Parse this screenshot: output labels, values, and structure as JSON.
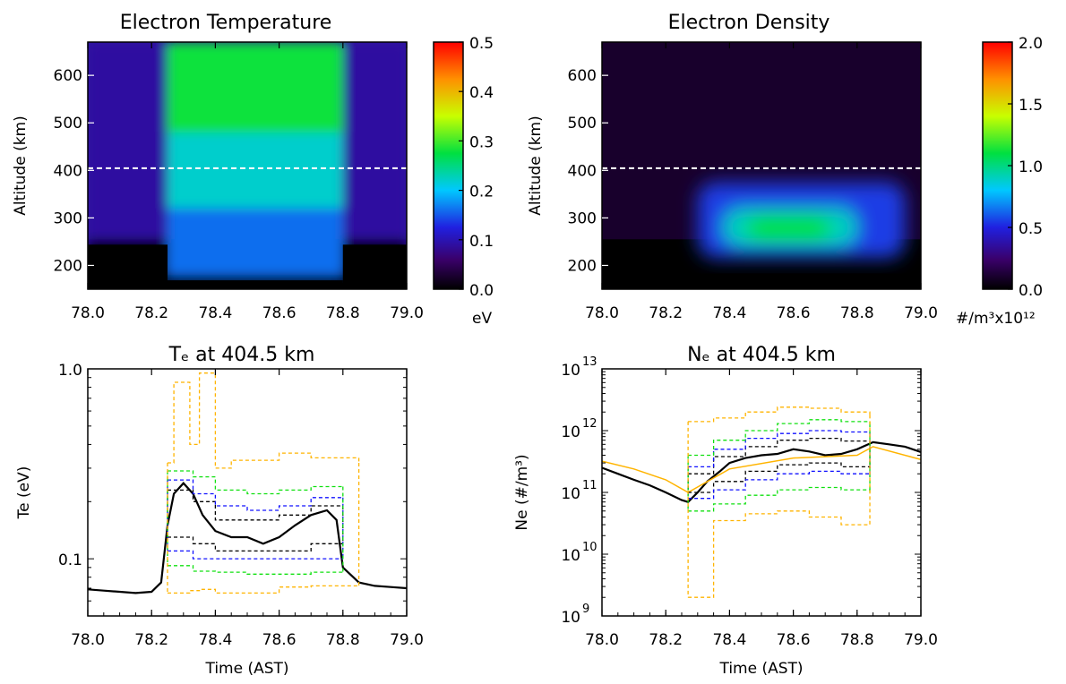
{
  "colors": {
    "background": "#ffffff",
    "axis": "#000000",
    "observed": "#000000",
    "band_black": "#000000",
    "band_blue": "#1010ff",
    "band_green": "#10e010",
    "band_orange": "#ffb400",
    "reference_line": "#ffffff"
  },
  "colormap": "rainbow (black → purple → blue → cyan → green → yellow → orange → red)",
  "chart_data": [
    {
      "type": "heatmap",
      "title": "Electron Temperature",
      "xlabel": "",
      "ylabel": "Altitude (km)",
      "xlim": [
        78.0,
        79.0
      ],
      "ylim": [
        150,
        670
      ],
      "x_ticks": [
        "78.0",
        "78.2",
        "78.4",
        "78.6",
        "78.8",
        "79.0"
      ],
      "y_ticks": [
        "200",
        "300",
        "400",
        "500",
        "600"
      ],
      "reference_line_altitude": 404.5,
      "colorbar": {
        "range": [
          0.0,
          0.5
        ],
        "ticks": [
          "0.0",
          "0.1",
          "0.2",
          "0.3",
          "0.4",
          "0.5"
        ],
        "unit": "eV"
      },
      "regions": [
        {
          "time": [
            78.0,
            78.25
          ],
          "altitude": [
            150,
            255
          ],
          "value": 0.0
        },
        {
          "time": [
            78.0,
            78.25
          ],
          "altitude": [
            255,
            670
          ],
          "value": 0.09
        },
        {
          "time": [
            78.25,
            78.8
          ],
          "altitude": [
            150,
            180
          ],
          "value": 0.0
        },
        {
          "time": [
            78.25,
            78.8
          ],
          "altitude": [
            180,
            320
          ],
          "value": 0.16
        },
        {
          "time": [
            78.25,
            78.8
          ],
          "altitude": [
            320,
            480
          ],
          "value": 0.22
        },
        {
          "time": [
            78.25,
            78.8
          ],
          "altitude": [
            480,
            670
          ],
          "value": 0.28
        },
        {
          "time": [
            78.8,
            79.0
          ],
          "altitude": [
            150,
            255
          ],
          "value": 0.0
        },
        {
          "time": [
            78.8,
            79.0
          ],
          "altitude": [
            255,
            670
          ],
          "value": 0.09
        }
      ]
    },
    {
      "type": "heatmap",
      "title": "Electron Density",
      "xlabel": "",
      "ylabel": "Altitude (km)",
      "xlim": [
        78.0,
        79.0
      ],
      "ylim": [
        150,
        670
      ],
      "x_ticks": [
        "78.0",
        "78.2",
        "78.4",
        "78.6",
        "78.8",
        "79.0"
      ],
      "y_ticks": [
        "200",
        "300",
        "400",
        "500",
        "600"
      ],
      "reference_line_altitude": 404.5,
      "colorbar": {
        "range": [
          0.0,
          2.0
        ],
        "ticks": [
          "0.0",
          "0.5",
          "1.0",
          "1.5",
          "2.0"
        ],
        "unit": "#/m³x10¹²"
      },
      "background_value": 0.1,
      "low_altitude_value": 0.0,
      "low_altitude_top": 255,
      "blob": [
        {
          "time": [
            78.3,
            78.95
          ],
          "altitude": [
            215,
            375
          ],
          "value": 0.55
        },
        {
          "time": [
            78.38,
            78.8
          ],
          "altitude": [
            240,
            320
          ],
          "value": 0.9
        },
        {
          "time": [
            78.45,
            78.72
          ],
          "altitude": [
            250,
            305
          ],
          "value": 1.1
        }
      ]
    },
    {
      "type": "line",
      "title": "Tₑ at 404.5 km",
      "xlabel": "Time (AST)",
      "ylabel": "Te (eV)",
      "xlim": [
        78.0,
        79.0
      ],
      "ylim": [
        0.05,
        1.0
      ],
      "yscale": "log",
      "x_ticks": [
        "78.0",
        "78.2",
        "78.4",
        "78.6",
        "78.8",
        "79.0"
      ],
      "y_ticks": [
        {
          "value": 0.1,
          "label": "0.1"
        },
        {
          "value": 1.0,
          "label": "1.0"
        }
      ],
      "series": [
        {
          "role": "observed",
          "color": "#000000",
          "style": "solid",
          "x": [
            78.0,
            78.05,
            78.1,
            78.15,
            78.2,
            78.23,
            78.25,
            78.27,
            78.3,
            78.33,
            78.36,
            78.4,
            78.45,
            78.5,
            78.55,
            78.6,
            78.65,
            78.7,
            78.75,
            78.78,
            78.8,
            78.85,
            78.9,
            78.95,
            79.0
          ],
          "y": [
            0.069,
            0.068,
            0.067,
            0.066,
            0.067,
            0.075,
            0.15,
            0.22,
            0.25,
            0.22,
            0.17,
            0.14,
            0.13,
            0.13,
            0.12,
            0.13,
            0.15,
            0.17,
            0.18,
            0.16,
            0.09,
            0.075,
            0.072,
            0.071,
            0.07
          ]
        },
        {
          "role": "band-inner",
          "color": "#000000",
          "style": "dashed",
          "x": [
            78.25,
            78.33,
            78.4,
            78.5,
            78.6,
            78.7,
            78.8
          ],
          "y_upper": [
            0.23,
            0.2,
            0.16,
            0.16,
            0.17,
            0.19,
            0.19
          ],
          "y_lower": [
            0.13,
            0.12,
            0.11,
            0.11,
            0.11,
            0.12,
            0.12
          ]
        },
        {
          "role": "band-mid",
          "color": "#1010ff",
          "style": "dashed",
          "x": [
            78.25,
            78.33,
            78.4,
            78.5,
            78.6,
            78.7,
            78.8
          ],
          "y_upper": [
            0.26,
            0.22,
            0.19,
            0.18,
            0.19,
            0.21,
            0.21
          ],
          "y_lower": [
            0.11,
            0.1,
            0.1,
            0.1,
            0.1,
            0.1,
            0.1
          ]
        },
        {
          "role": "band-outer",
          "color": "#10e010",
          "style": "dashed",
          "x": [
            78.25,
            78.33,
            78.4,
            78.5,
            78.6,
            78.7,
            78.8
          ],
          "y_upper": [
            0.29,
            0.27,
            0.23,
            0.22,
            0.23,
            0.24,
            0.24
          ],
          "y_lower": [
            0.092,
            0.086,
            0.085,
            0.083,
            0.083,
            0.085,
            0.085
          ]
        },
        {
          "role": "band-extreme",
          "color": "#ffb400",
          "style": "dashed",
          "x": [
            78.25,
            78.27,
            78.32,
            78.35,
            78.4,
            78.45,
            78.6,
            78.7,
            78.85
          ],
          "y_upper": [
            0.32,
            0.85,
            0.4,
            0.95,
            0.3,
            0.33,
            0.36,
            0.34,
            0.32
          ],
          "y_lower": [
            0.066,
            0.066,
            0.068,
            0.069,
            0.066,
            0.066,
            0.071,
            0.072,
            0.072
          ]
        }
      ]
    },
    {
      "type": "line",
      "title": "Nₑ at 404.5 km",
      "xlabel": "Time (AST)",
      "ylabel": "Ne (#/m³)",
      "xlim": [
        78.0,
        79.0
      ],
      "ylim": [
        1000000000.0,
        10000000000000.0
      ],
      "yscale": "log",
      "x_ticks": [
        "78.0",
        "78.2",
        "78.4",
        "78.6",
        "78.8",
        "79.0"
      ],
      "y_ticks": [
        {
          "value": 1000000000.0,
          "label": "10",
          "exp": "9"
        },
        {
          "value": 10000000000.0,
          "label": "10",
          "exp": "10"
        },
        {
          "value": 100000000000.0,
          "label": "10",
          "exp": "11"
        },
        {
          "value": 1000000000000.0,
          "label": "10",
          "exp": "12"
        },
        {
          "value": 10000000000000.0,
          "label": "10",
          "exp": "13"
        }
      ],
      "series": [
        {
          "role": "observed",
          "color": "#000000",
          "style": "solid",
          "x": [
            78.0,
            78.05,
            78.1,
            78.15,
            78.2,
            78.25,
            78.27,
            78.3,
            78.33,
            78.37,
            78.4,
            78.45,
            78.5,
            78.55,
            78.6,
            78.65,
            78.7,
            78.75,
            78.8,
            78.85,
            78.9,
            78.95,
            79.0
          ],
          "y": [
            250000000000.0,
            200000000000.0,
            160000000000.0,
            130000000000.0,
            100000000000.0,
            75000000000.0,
            70000000000.0,
            100000000000.0,
            150000000000.0,
            220000000000.0,
            300000000000.0,
            360000000000.0,
            400000000000.0,
            420000000000.0,
            500000000000.0,
            460000000000.0,
            400000000000.0,
            420000000000.0,
            500000000000.0,
            650000000000.0,
            600000000000.0,
            550000000000.0,
            450000000000.0
          ]
        },
        {
          "role": "model",
          "color": "#ffb400",
          "style": "solid",
          "x": [
            78.0,
            78.1,
            78.2,
            78.27,
            78.4,
            78.6,
            78.8,
            78.85,
            79.0
          ],
          "y": [
            320000000000.0,
            240000000000.0,
            160000000000.0,
            100000000000.0,
            240000000000.0,
            360000000000.0,
            400000000000.0,
            550000000000.0,
            340000000000.0
          ]
        },
        {
          "role": "band-inner",
          "color": "#000000",
          "style": "dashed",
          "x": [
            78.27,
            78.35,
            78.45,
            78.55,
            78.65,
            78.75,
            78.84
          ],
          "y_upper": [
            200000000000.0,
            380000000000.0,
            550000000000.0,
            700000000000.0,
            750000000000.0,
            680000000000.0,
            650000000000.0
          ],
          "y_lower": [
            100000000000.0,
            150000000000.0,
            220000000000.0,
            280000000000.0,
            300000000000.0,
            260000000000.0,
            250000000000.0
          ]
        },
        {
          "role": "band-mid",
          "color": "#1010ff",
          "style": "dashed",
          "x": [
            78.27,
            78.35,
            78.45,
            78.55,
            78.65,
            78.75,
            78.84
          ],
          "y_upper": [
            260000000000.0,
            500000000000.0,
            750000000000.0,
            900000000000.0,
            1000000000000.0,
            950000000000.0,
            900000000000.0
          ],
          "y_lower": [
            80000000000.0,
            110000000000.0,
            160000000000.0,
            200000000000.0,
            220000000000.0,
            200000000000.0,
            180000000000.0
          ]
        },
        {
          "role": "band-outer",
          "color": "#10e010",
          "style": "dashed",
          "x": [
            78.27,
            78.35,
            78.45,
            78.55,
            78.65,
            78.75,
            78.84
          ],
          "y_upper": [
            400000000000.0,
            700000000000.0,
            1000000000000.0,
            1300000000000.0,
            1500000000000.0,
            1400000000000.0,
            1300000000000.0
          ],
          "y_lower": [
            50000000000.0,
            65000000000.0,
            90000000000.0,
            110000000000.0,
            120000000000.0,
            110000000000.0,
            100000000000.0
          ]
        },
        {
          "role": "band-extreme",
          "color": "#ffb400",
          "style": "dashed",
          "x": [
            78.27,
            78.35,
            78.45,
            78.55,
            78.65,
            78.75,
            78.84
          ],
          "y_upper": [
            1400000000000.0,
            1600000000000.0,
            2000000000000.0,
            2400000000000.0,
            2300000000000.0,
            2000000000000.0,
            1800000000000.0
          ],
          "y_lower": [
            2000000000.0,
            35000000000.0,
            45000000000.0,
            50000000000.0,
            40000000000.0,
            30000000000.0,
            35000000000.0
          ]
        }
      ]
    }
  ]
}
